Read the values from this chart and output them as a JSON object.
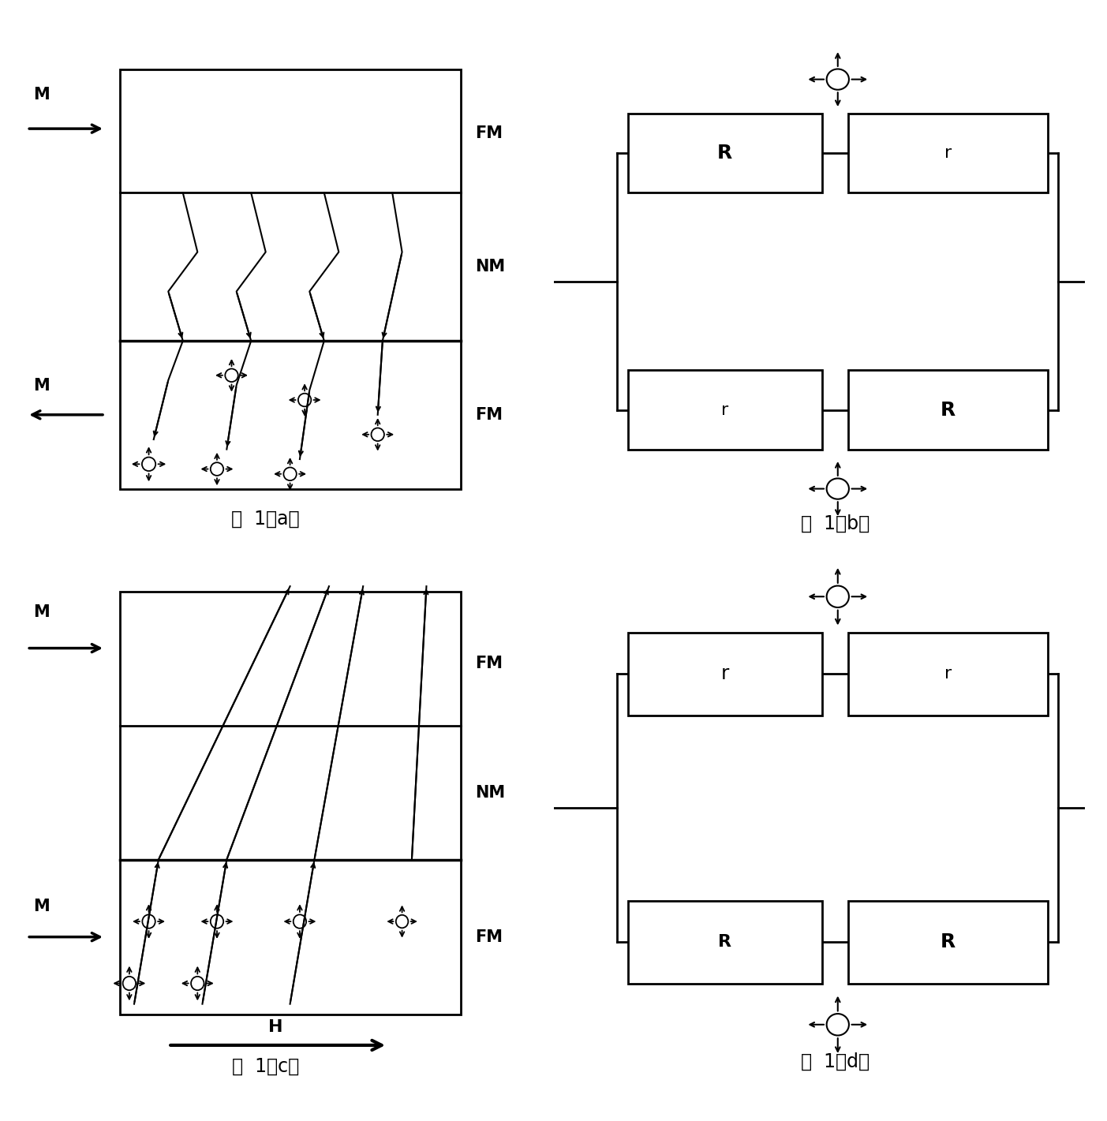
{
  "bg_color": "#ffffff",
  "fig_width": 14.03,
  "fig_height": 14.21,
  "caption_a": "图  1（a）",
  "caption_b": "图  1（b）",
  "caption_c": "图  1（c）",
  "caption_d": "图  1（d）",
  "label_FM": "FM",
  "label_NM": "NM",
  "label_M": "M",
  "label_H": "H"
}
